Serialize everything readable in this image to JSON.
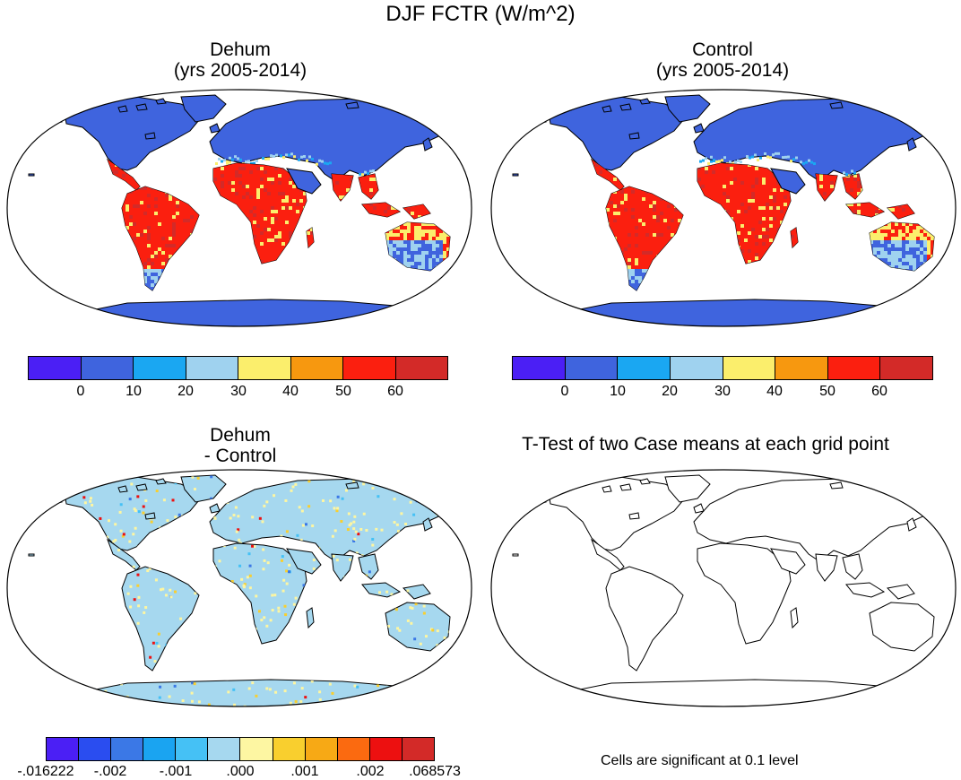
{
  "figure": {
    "title": "DJF FCTR (W/m^2)"
  },
  "panels": {
    "dehum": {
      "title_line1": "Dehum",
      "title_line2": "(yrs 2005-2014)"
    },
    "control": {
      "title_line1": "Control",
      "title_line2": "(yrs 2005-2014)"
    },
    "difference": {
      "title_line1": "Dehum",
      "title_line2": "- Control"
    },
    "ttest": {
      "title": "T-Test of two Case means at each grid point",
      "note": "Cells are significant at 0.1 level"
    }
  },
  "colorbars": {
    "absolute": {
      "colors": [
        "#4b1ff5",
        "#3f64de",
        "#1aa7f2",
        "#9fd2ef",
        "#fbee6c",
        "#f7980f",
        "#fb1f0f",
        "#d32a28"
      ],
      "tick_labels": [
        "0",
        "10",
        "20",
        "30",
        "40",
        "50",
        "60"
      ]
    },
    "difference": {
      "colors": [
        "#4b1ff5",
        "#2a4df0",
        "#3b78e6",
        "#1aa4f1",
        "#45c1f5",
        "#a6d8ef",
        "#fdf6a2",
        "#f9cf2e",
        "#f7a915",
        "#fb6a10",
        "#ed1010",
        "#d32a28"
      ],
      "tick_labels": [
        "-.016222",
        "-.002",
        "-.001",
        ".000",
        ".001",
        ".002",
        ".068573"
      ]
    }
  },
  "map_legend": {
    "land_colors": {
      "high_latitude": "#3f64de",
      "tropics": "#fb1f0f",
      "transition_low": "#9fd2ef",
      "transition_high": "#fbee6c",
      "difference_background": "#a6d8ef"
    }
  }
}
